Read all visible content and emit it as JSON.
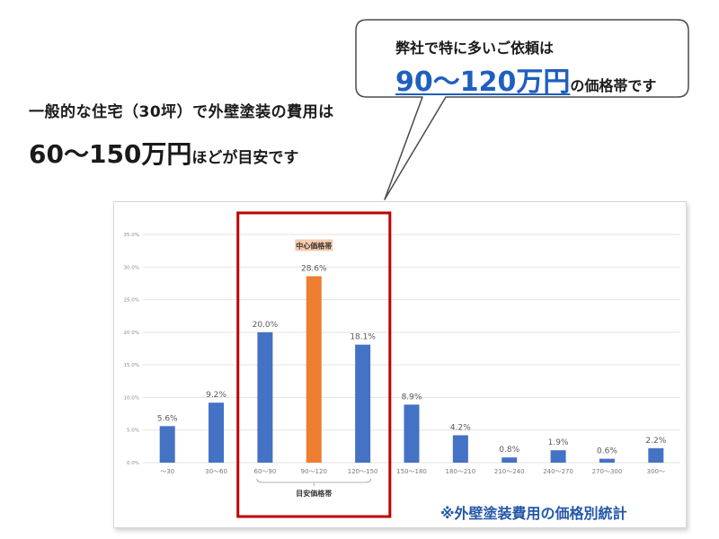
{
  "headline": {
    "line1": "一般的な住宅（30坪）で外壁塗装の費用は",
    "line2_big": "60～150万円",
    "line2_small": "ほどが目安です"
  },
  "callout": {
    "line1": "弊社で特に多いご依頼は",
    "line2_highlight": "90～120万円",
    "line2_rest": "の価格帯です"
  },
  "chart_data": {
    "type": "bar",
    "categories": [
      "～30",
      "30～60",
      "60～90",
      "90～120",
      "120～150",
      "150～180",
      "180～210",
      "210～240",
      "240～270",
      "270～300",
      "300～"
    ],
    "values": [
      5.6,
      9.2,
      20.0,
      28.6,
      18.1,
      8.9,
      4.2,
      0.8,
      1.9,
      0.6,
      2.2
    ],
    "data_labels": [
      "5.6%",
      "9.2%",
      "20.0%",
      "28.6%",
      "18.1%",
      "8.9%",
      "4.2%",
      "0.8%",
      "1.9%",
      "0.6%",
      "2.2%"
    ],
    "y_ticks": [
      0,
      5,
      10,
      15,
      20,
      25,
      30,
      35
    ],
    "y_tick_labels": [
      "0.0%",
      "5.0%",
      "10.0%",
      "15.0%",
      "20.0%",
      "25.0%",
      "30.0%",
      "35.0%"
    ],
    "ylim": [
      0,
      35
    ],
    "grid": true,
    "highlight_index": 3,
    "highlight_label": "中心価格帯",
    "range_label": "目安価格帯",
    "range_indices": [
      2,
      4
    ],
    "colors": {
      "bar": "#4472c4",
      "highlight_bar": "#ed7d31",
      "highlight_label_bg": "#f8cbad",
      "range_box": "#c00000"
    }
  },
  "footnote": "※外壁塗装費用の価格別統計",
  "colors": {
    "accent_blue": "#1f5fbf",
    "footnote": "#2457a8"
  }
}
